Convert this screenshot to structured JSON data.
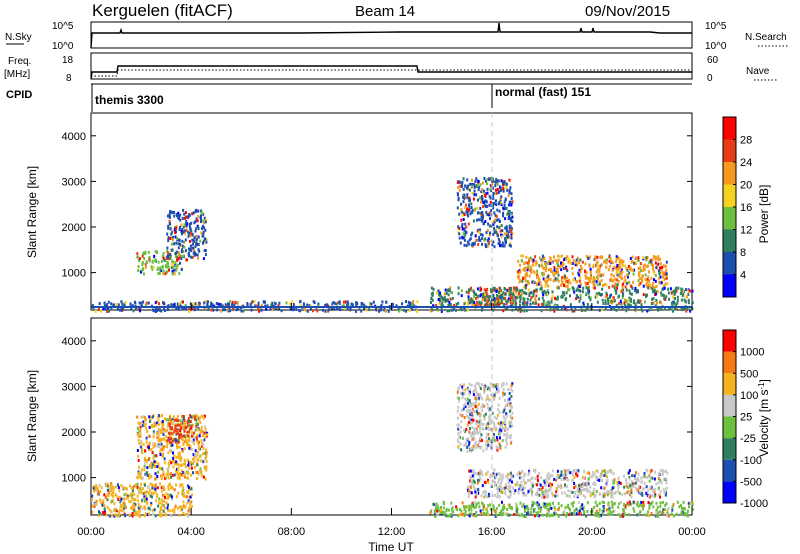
{
  "header": {
    "station": "Kerguelen (fitACF)",
    "beam": "Beam 14",
    "date": "09/Nov/2015"
  },
  "nsky_panel": {
    "left_label": "N.Sky",
    "left_ticks": [
      "10^5",
      "10^0"
    ],
    "right_ticks": [
      "10^5",
      "10^0"
    ],
    "right_label": "N.Search"
  },
  "freq_panel": {
    "left_label_line1": "Freq.",
    "left_label_line2": "[MHz]",
    "left_ticks": [
      "18",
      "8"
    ],
    "right_ticks": [
      "60",
      "0"
    ],
    "right_label": "Nave"
  },
  "cpid_panel": {
    "label": "CPID",
    "segments": [
      {
        "start_hour": 0,
        "text": "themis 3300"
      },
      {
        "start_hour": 16,
        "text": "normal (fast) 151"
      }
    ]
  },
  "power_panel": {
    "ylabel": "Slant Range [km]",
    "yticks": [
      "4000",
      "3000",
      "2000",
      "1000"
    ],
    "colorbar_label": "Power [dB]",
    "colorbar_ticks": [
      "28",
      "24",
      "20",
      "16",
      "12",
      "8",
      "4"
    ],
    "colors": [
      "#0000ff",
      "#1c4fb0",
      "#2e7f5e",
      "#6fbf3f",
      "#f5d21f",
      "#f59a1f",
      "#e83c14",
      "#ff0000"
    ]
  },
  "velocity_panel": {
    "ylabel": "Slant Range [km]",
    "yticks": [
      "4000",
      "3000",
      "2000",
      "1000"
    ],
    "colorbar_label": "Velocity [m s",
    "colorbar_label_exp": "-1",
    "colorbar_label_end": "]",
    "colorbar_ticks": [
      "1000",
      "500",
      "100",
      "25",
      "-25",
      "-100",
      "-500",
      "-1000"
    ],
    "colors": [
      "#0000ff",
      "#1c4fb0",
      "#2e7f5e",
      "#6fbf3f",
      "#c8c8c8",
      "#f5b41f",
      "#f57a14",
      "#ff0000"
    ]
  },
  "xaxis": {
    "label": "Time UT",
    "ticks": [
      "00:00",
      "04:00",
      "08:00",
      "12:00",
      "16:00",
      "20:00",
      "00:00"
    ]
  },
  "chart_data": {
    "type": "heatmap",
    "x_range_hours": [
      0,
      24
    ],
    "y_range_km": [
      180,
      4500
    ],
    "power_regions": [
      {
        "t0": 1.8,
        "t1": 3.6,
        "r0": 1000,
        "r1": 1500,
        "level": "#6fbf3f"
      },
      {
        "t0": 3.0,
        "t1": 4.6,
        "r0": 1300,
        "r1": 2400,
        "level": "#1c4fb0"
      },
      {
        "t0": 14.6,
        "t1": 16.8,
        "r0": 1600,
        "r1": 3100,
        "level": "#1c4fb0"
      },
      {
        "t0": 15.0,
        "t1": 17.0,
        "r0": 300,
        "r1": 700,
        "level": "#e83c14"
      },
      {
        "t0": 17.0,
        "t1": 23.0,
        "r0": 700,
        "r1": 1400,
        "level": "#f59a1f"
      },
      {
        "t0": 13.5,
        "t1": 24.0,
        "r0": 180,
        "r1": 700,
        "level": "#2e7f5e"
      },
      {
        "t0": 0.0,
        "t1": 13.0,
        "r0": 180,
        "r1": 400,
        "level": "#1c4fb0"
      }
    ],
    "velocity_regions": [
      {
        "t0": 1.8,
        "t1": 4.6,
        "r0": 1000,
        "r1": 2400,
        "level": "#f5b41f"
      },
      {
        "t0": 3.0,
        "t1": 4.2,
        "r0": 1800,
        "r1": 2400,
        "level": "#e83c14"
      },
      {
        "t0": 14.6,
        "t1": 16.8,
        "r0": 1600,
        "r1": 3100,
        "level": "#c8c8c8"
      },
      {
        "t0": 15.0,
        "t1": 23.0,
        "r0": 600,
        "r1": 1200,
        "level": "#c8c8c8"
      },
      {
        "t0": 13.5,
        "t1": 24.0,
        "r0": 180,
        "r1": 500,
        "level": "#6fbf3f"
      },
      {
        "t0": 0.0,
        "t1": 4.0,
        "r0": 180,
        "r1": 900,
        "level": "#f5b41f"
      }
    ]
  }
}
